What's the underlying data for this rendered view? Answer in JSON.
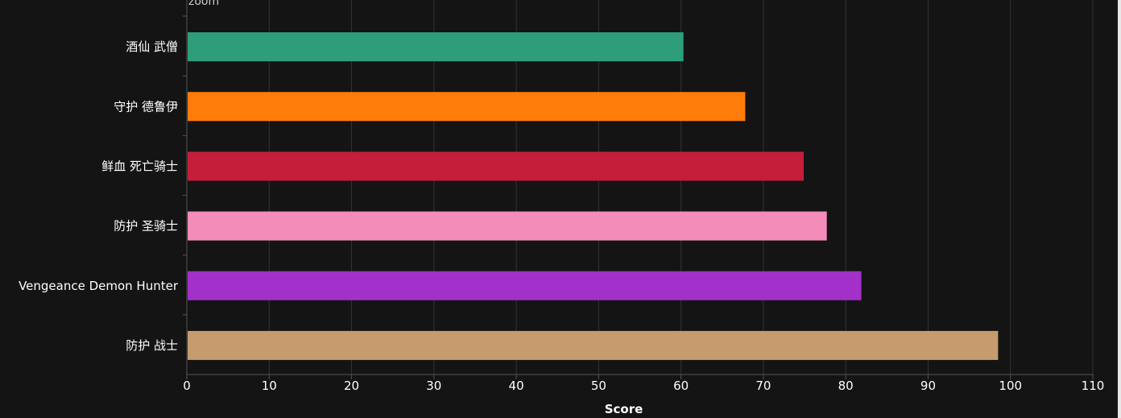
{
  "zoom_label": "zoom",
  "colors": {
    "background": "#141414",
    "grid": "#333333",
    "axis": "#555555"
  },
  "chart_data": {
    "type": "bar",
    "orientation": "horizontal",
    "categories": [
      "酒仙 武僧",
      "守护 德鲁伊",
      "鲜血 死亡骑士",
      "防护 圣骑士",
      "Vengeance Demon Hunter",
      "防护 战士"
    ],
    "values": [
      60.3,
      67.8,
      74.9,
      77.7,
      81.9,
      98.5
    ],
    "bar_colors": [
      "#2e9e7a",
      "#ff7c0a",
      "#c41e3a",
      "#f48cba",
      "#a330c9",
      "#c69b6d"
    ],
    "xlabel": "Score",
    "ylabel": "",
    "xlim": [
      0,
      110
    ],
    "xticks": [
      0,
      10,
      20,
      30,
      40,
      50,
      60,
      70,
      80,
      90,
      100,
      110
    ],
    "grid": true
  }
}
